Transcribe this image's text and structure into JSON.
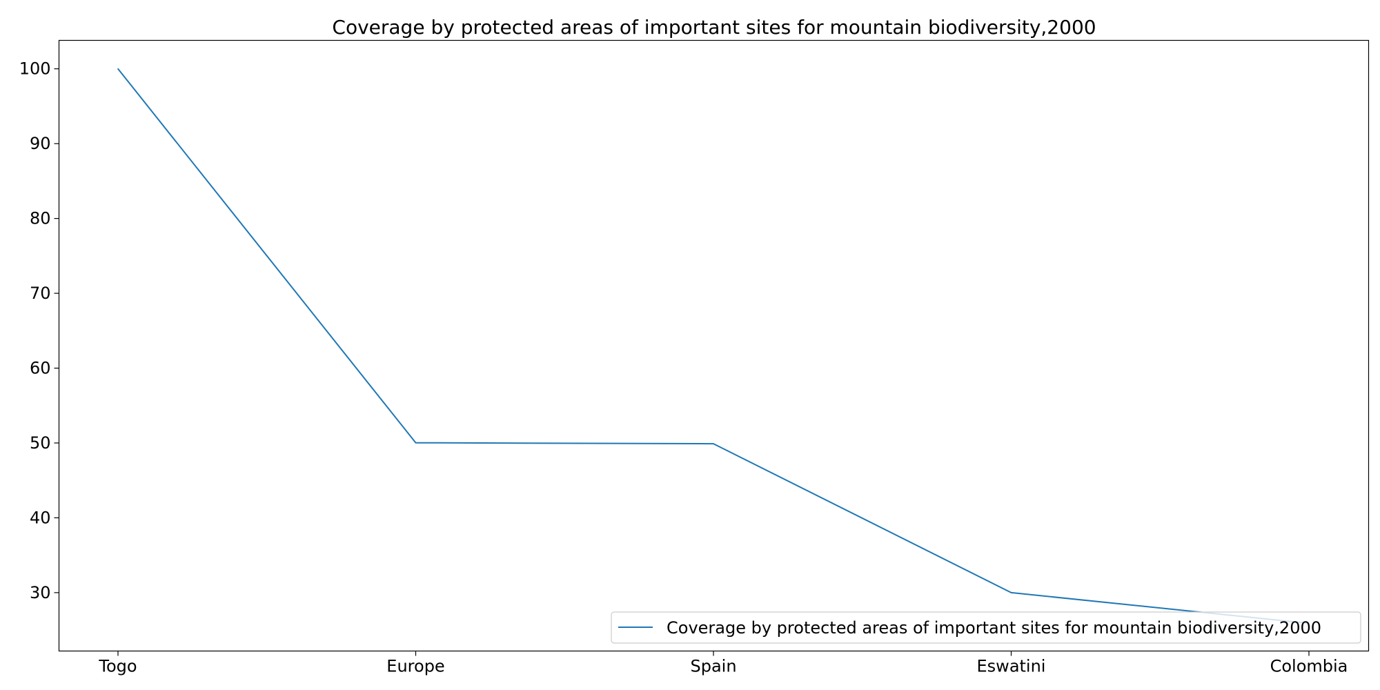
{
  "chart_data": {
    "type": "line",
    "title": "Coverage by protected areas of important sites for mountain biodiversity,2000",
    "xlabel": "",
    "ylabel": "",
    "categories": [
      "Togo",
      "Europe",
      "Spain",
      "Eswatini",
      "Colombia"
    ],
    "series": [
      {
        "name": "Coverage by protected areas of important sites for mountain biodiversity,2000",
        "values": [
          100,
          50.03,
          49.9,
          30.0,
          25.9
        ],
        "color": "#1f77b4"
      }
    ],
    "ylim": [
      22.2,
      103.8
    ],
    "yticks": [
      30,
      40,
      50,
      60,
      70,
      80,
      90,
      100
    ],
    "grid": false,
    "legend_position": "lower right"
  }
}
